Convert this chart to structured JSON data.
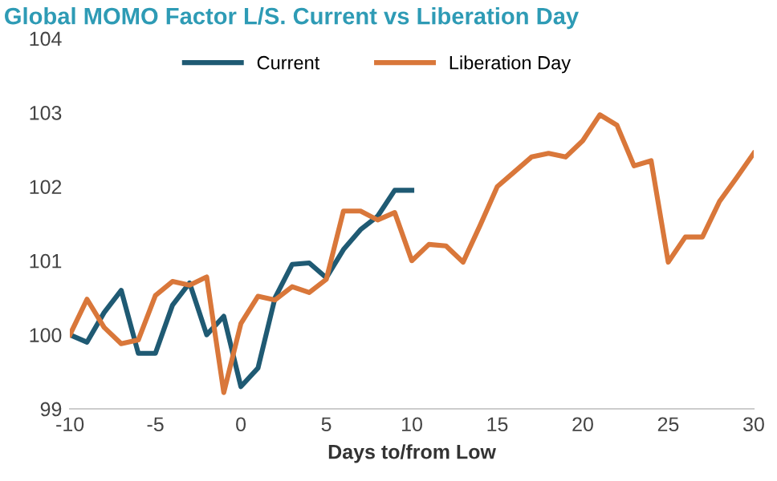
{
  "chart_data": {
    "type": "line",
    "title": "Global MOMO Factor L/S. Current vs Liberation Day",
    "xlabel": "Days to/from Low",
    "series": [
      {
        "name": "Current",
        "color": "#1f5a73",
        "x": [
          -10,
          -9,
          -8,
          -7,
          -6,
          -5,
          -4,
          -3,
          -2,
          -1,
          0,
          1,
          2,
          3,
          4,
          5,
          6,
          7,
          8,
          9,
          10
        ],
        "values": [
          100.0,
          99.9,
          100.3,
          100.6,
          99.75,
          99.75,
          100.4,
          100.7,
          100.0,
          100.25,
          99.3,
          99.55,
          100.5,
          100.95,
          100.97,
          100.77,
          101.15,
          101.42,
          101.6,
          101.95,
          101.95
        ]
      },
      {
        "name": "Liberation Day",
        "color": "#d9773a",
        "x": [
          -10,
          -9,
          -8,
          -7,
          -6,
          -5,
          -4,
          -3,
          -2,
          -1,
          0,
          1,
          2,
          3,
          4,
          5,
          6,
          7,
          8,
          9,
          10,
          11,
          12,
          13,
          14,
          15,
          16,
          17,
          18,
          19,
          20,
          21,
          22,
          23,
          24,
          25,
          26,
          27,
          28,
          29,
          30
        ],
        "values": [
          100.0,
          100.48,
          100.1,
          99.88,
          99.93,
          100.53,
          100.72,
          100.67,
          100.78,
          99.22,
          100.15,
          100.52,
          100.47,
          100.65,
          100.57,
          100.75,
          101.67,
          101.67,
          101.55,
          101.65,
          101.0,
          101.22,
          101.2,
          100.98,
          101.48,
          102.0,
          102.2,
          102.4,
          102.45,
          102.4,
          102.62,
          102.97,
          102.83,
          102.28,
          102.35,
          100.98,
          101.32,
          101.32,
          101.8,
          102.12,
          102.45
        ]
      }
    ],
    "xlim": [
      -10,
      30
    ],
    "xticks": [
      -10,
      -5,
      0,
      5,
      10,
      15,
      20,
      25,
      30
    ],
    "ylim": [
      99,
      104
    ],
    "yticks": [
      99,
      100,
      101,
      102,
      103,
      104
    ],
    "grid": false,
    "legend": "top",
    "marker": "none",
    "line_style": "solid"
  }
}
